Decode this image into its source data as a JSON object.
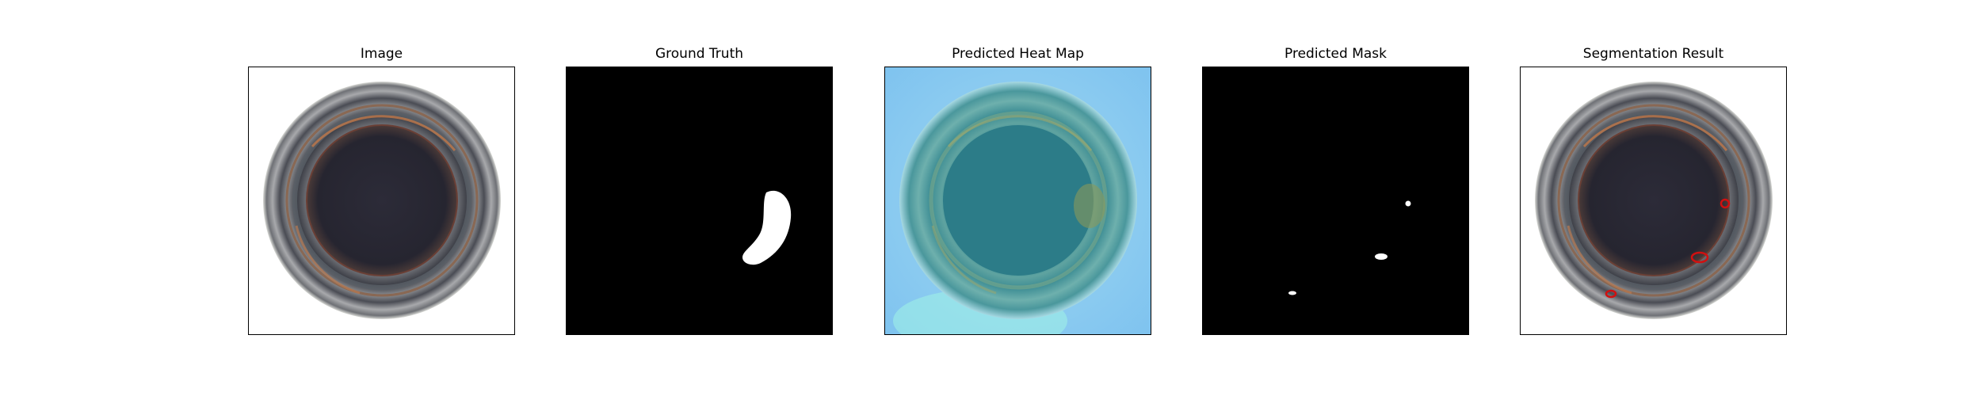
{
  "figure": {
    "panels": [
      {
        "title": "Image"
      },
      {
        "title": "Ground Truth"
      },
      {
        "title": "Predicted Heat Map"
      },
      {
        "title": "Predicted Mask"
      },
      {
        "title": "Segmentation Result"
      }
    ]
  }
}
